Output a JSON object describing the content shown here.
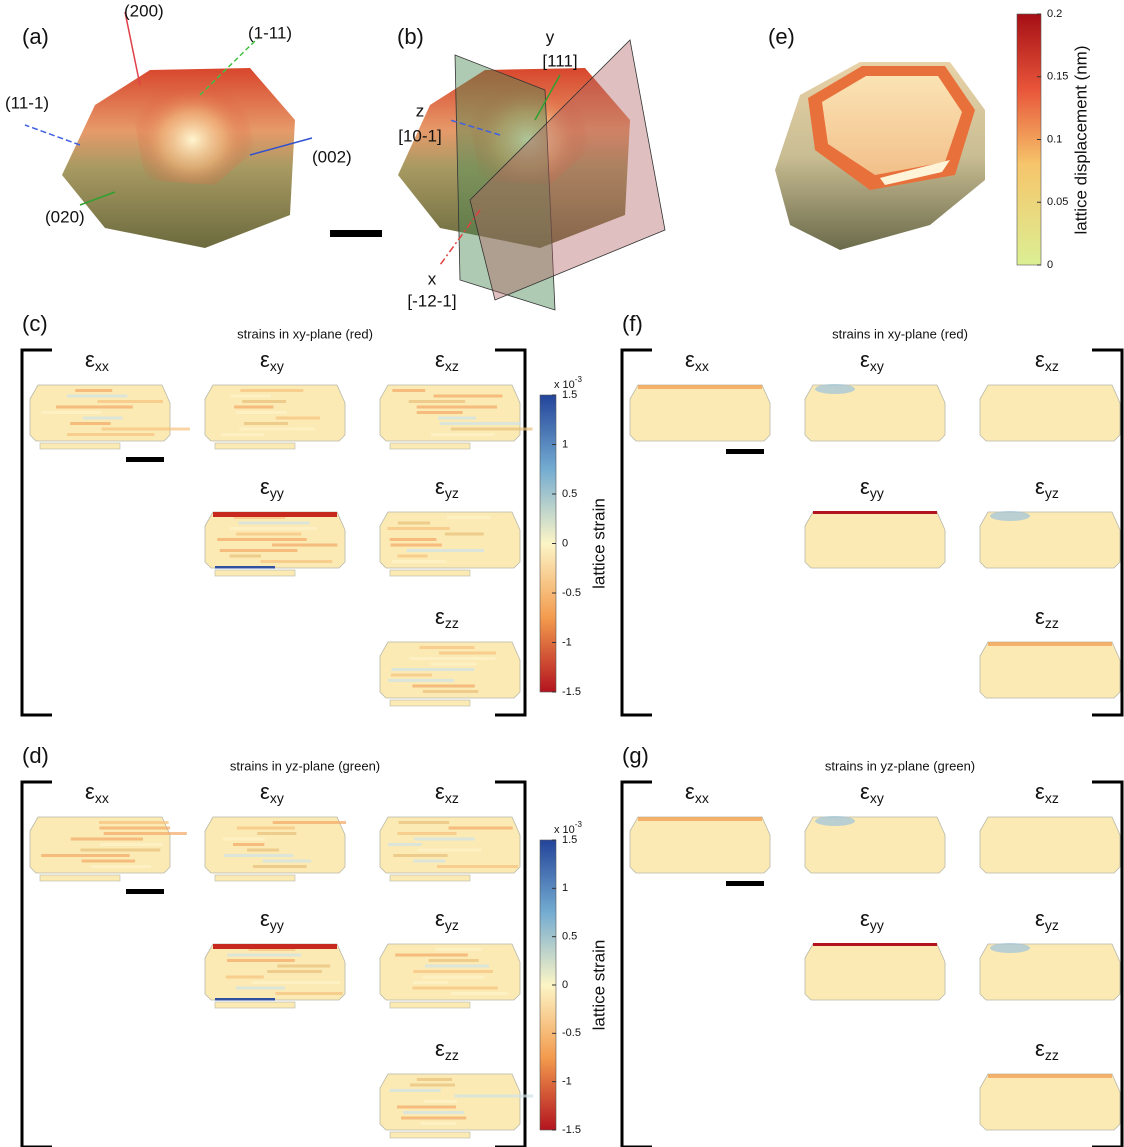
{
  "panel_a": {
    "label": "(a)",
    "axes": [
      "(200)",
      "(1-11)",
      "(11-1)",
      "(002)",
      "(020)"
    ]
  },
  "panel_b": {
    "label": "(b)",
    "axes": [
      {
        "name": "y",
        "dir": "[111]"
      },
      {
        "name": "z",
        "dir": "[10-1]"
      },
      {
        "name": "x",
        "dir": "[-12-1]"
      }
    ]
  },
  "panel_e": {
    "label": "(e)",
    "colorbar": {
      "title": "lattice displacement (nm)",
      "ticks": [
        0.2,
        0.15,
        0.1,
        0.05,
        0
      ]
    }
  },
  "panel_c": {
    "label": "(c)",
    "title": "strains in xy-plane (red)",
    "maps": [
      {
        "symbol": "ε",
        "sub": "xx"
      },
      {
        "symbol": "ε",
        "sub": "xy"
      },
      {
        "symbol": "ε",
        "sub": "xz"
      },
      {
        "symbol": "ε",
        "sub": "yy"
      },
      {
        "symbol": "ε",
        "sub": "yz"
      },
      {
        "symbol": "ε",
        "sub": "zz"
      }
    ],
    "colorbar": {
      "title": "lattice strain",
      "multiplier": "x 10",
      "exponent": "-3",
      "ticks": [
        1.5,
        1,
        0.5,
        0,
        -0.5,
        -1,
        -1.5
      ]
    }
  },
  "panel_d": {
    "label": "(d)",
    "title": "strains in yz-plane (green)",
    "maps": [
      {
        "symbol": "ε",
        "sub": "xx"
      },
      {
        "symbol": "ε",
        "sub": "xy"
      },
      {
        "symbol": "ε",
        "sub": "xz"
      },
      {
        "symbol": "ε",
        "sub": "yy"
      },
      {
        "symbol": "ε",
        "sub": "yz"
      },
      {
        "symbol": "ε",
        "sub": "zz"
      }
    ],
    "colorbar": {
      "title": "lattice strain",
      "multiplier": "x 10",
      "exponent": "-3",
      "ticks": [
        1.5,
        1,
        0.5,
        0,
        -0.5,
        -1,
        -1.5
      ]
    }
  },
  "panel_f": {
    "label": "(f)",
    "title": "strains in xy-plane (red)",
    "maps": [
      {
        "symbol": "ε",
        "sub": "xx"
      },
      {
        "symbol": "ε",
        "sub": "xy"
      },
      {
        "symbol": "ε",
        "sub": "xz"
      },
      {
        "symbol": "ε",
        "sub": "yy"
      },
      {
        "symbol": "ε",
        "sub": "yz"
      },
      {
        "symbol": "ε",
        "sub": "zz"
      }
    ]
  },
  "panel_g": {
    "label": "(g)",
    "title": "strains in yz-plane (green)",
    "maps": [
      {
        "symbol": "ε",
        "sub": "xx"
      },
      {
        "symbol": "ε",
        "sub": "xy"
      },
      {
        "symbol": "ε",
        "sub": "xz"
      },
      {
        "symbol": "ε",
        "sub": "yy"
      },
      {
        "symbol": "ε",
        "sub": "yz"
      },
      {
        "symbol": "ε",
        "sub": "zz"
      }
    ]
  }
}
